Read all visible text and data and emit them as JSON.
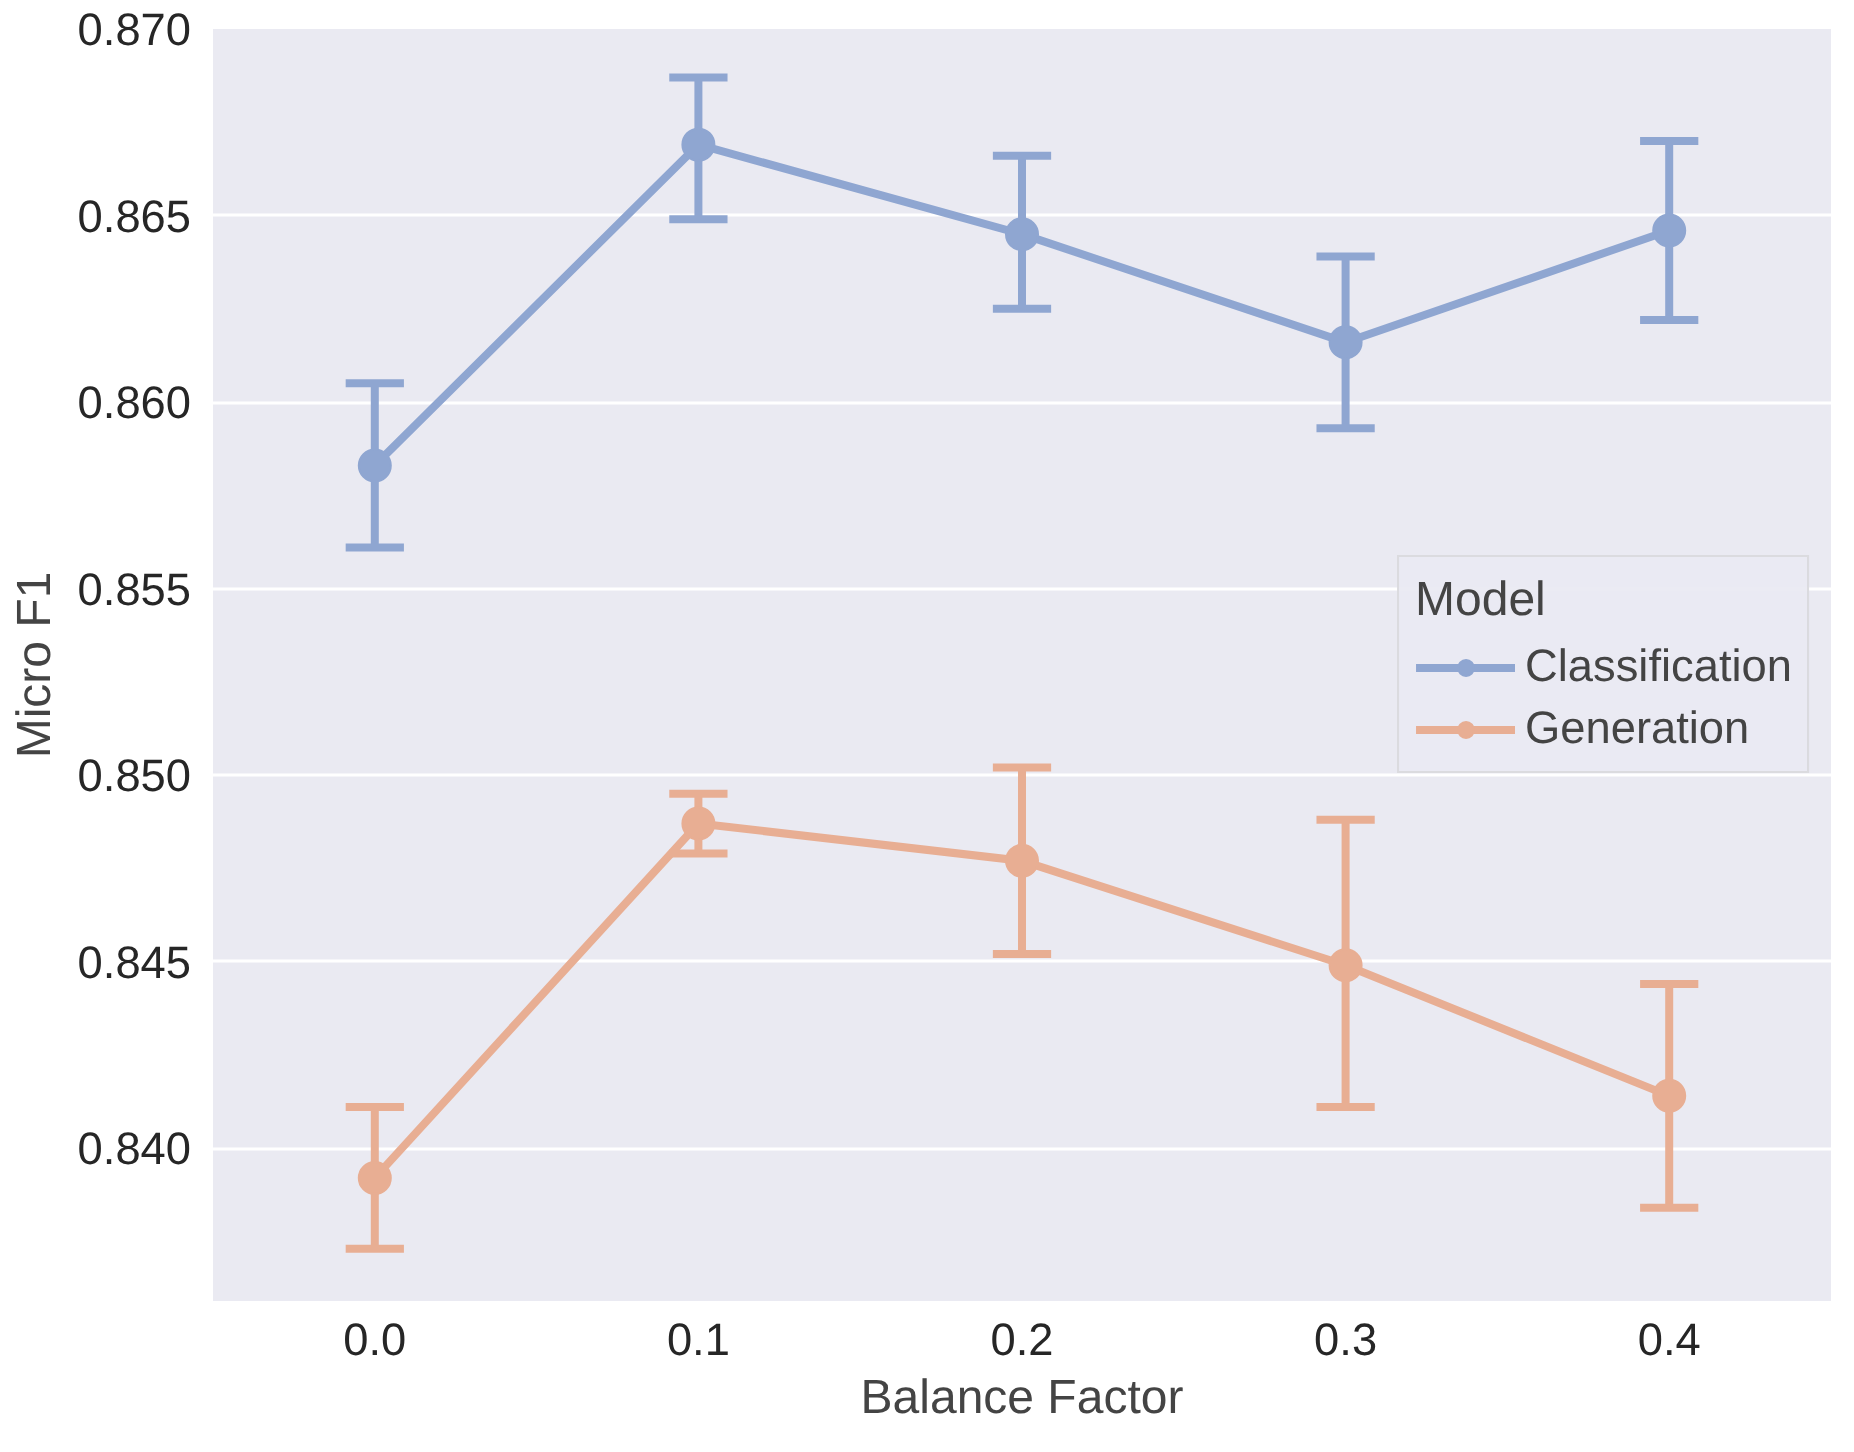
{
  "chart_data": {
    "type": "line",
    "xlabel": "Balance Factor",
    "ylabel": "Micro F1",
    "legend_title": "Model",
    "categories": [
      "0.0",
      "0.1",
      "0.2",
      "0.3",
      "0.4"
    ],
    "series": [
      {
        "name": "Classification",
        "color": "#8fa6d1",
        "values": [
          0.8583,
          0.8669,
          0.8645,
          0.8616,
          0.8646
        ],
        "errors": [
          [
            0.8561,
            0.8605
          ],
          [
            0.8649,
            0.8687
          ],
          [
            0.8625,
            0.8666
          ],
          [
            0.8593,
            0.8639
          ],
          [
            0.8622,
            0.867
          ]
        ]
      },
      {
        "name": "Generation",
        "color": "#e8ae93",
        "values": [
          0.8392,
          0.8487,
          0.8477,
          0.8449,
          0.8414
        ],
        "errors": [
          [
            0.8373,
            0.8411
          ],
          [
            0.8479,
            0.8495
          ],
          [
            0.8452,
            0.8502
          ],
          [
            0.8411,
            0.8488
          ],
          [
            0.8384,
            0.8444
          ]
        ]
      }
    ],
    "ylim": [
      0.8359,
      0.87
    ],
    "yticks": [
      {
        "value": 0.84,
        "label": "0.840"
      },
      {
        "value": 0.845,
        "label": "0.845"
      },
      {
        "value": 0.85,
        "label": "0.850"
      },
      {
        "value": 0.855,
        "label": "0.855"
      },
      {
        "value": 0.86,
        "label": "0.860"
      },
      {
        "value": 0.865,
        "label": "0.865"
      },
      {
        "value": 0.87,
        "label": "0.870"
      }
    ],
    "grid": "y",
    "legend": "right",
    "marker": "circle",
    "line_style": "solid"
  }
}
